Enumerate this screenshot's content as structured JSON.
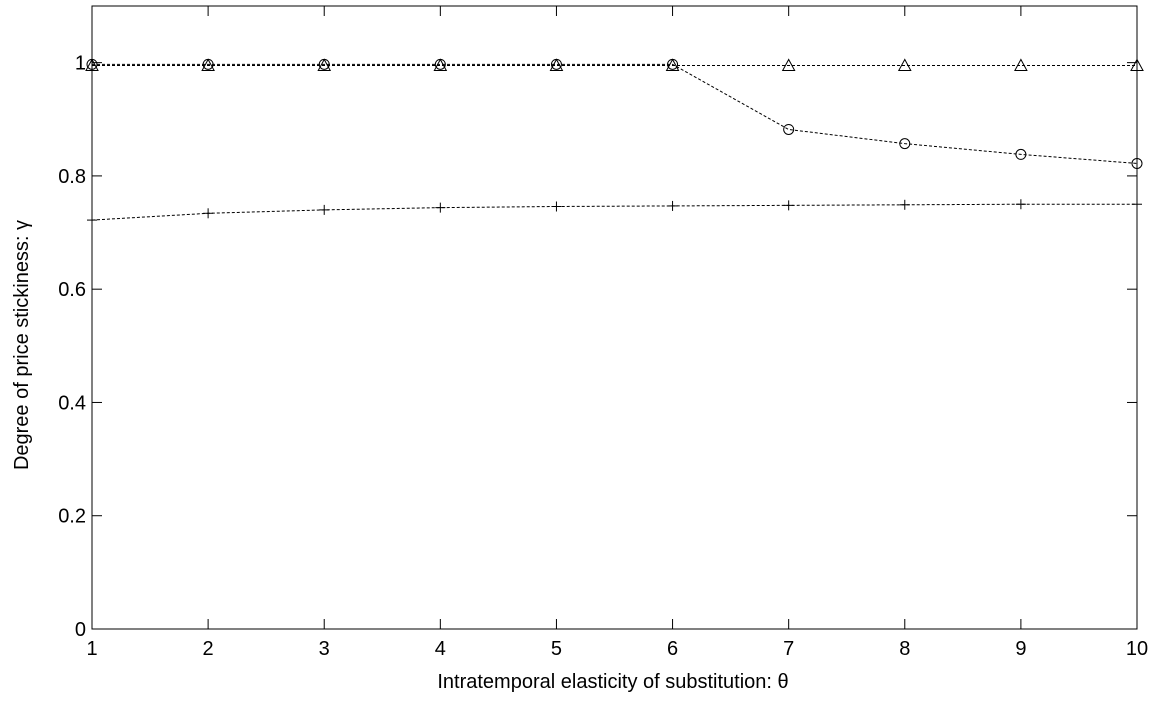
{
  "chart_data": {
    "type": "line",
    "title": "",
    "xlabel": "Intratemporal elasticity of substitution: θ",
    "ylabel": "Degree of price stickiness: γ",
    "xlim": [
      1,
      10
    ],
    "ylim": [
      0,
      1.1
    ],
    "x": [
      1,
      2,
      3,
      4,
      5,
      6,
      7,
      8,
      9,
      10
    ],
    "xticks": [
      "1",
      "2",
      "3",
      "4",
      "5",
      "6",
      "7",
      "8",
      "9",
      "10"
    ],
    "yticks": [
      {
        "value": 0,
        "label": "0"
      },
      {
        "value": 0.2,
        "label": "0.2"
      },
      {
        "value": 0.4,
        "label": "0.4"
      },
      {
        "value": 0.6,
        "label": "0.6"
      },
      {
        "value": 0.8,
        "label": "0.8"
      },
      {
        "value": 1,
        "label": "1"
      }
    ],
    "grid": false,
    "legend": "none",
    "series": [
      {
        "marker": "plus",
        "values": [
          0.722,
          0.734,
          0.74,
          0.744,
          0.746,
          0.747,
          0.748,
          0.749,
          0.75,
          0.75
        ]
      },
      {
        "marker": "circle",
        "values": [
          0.997,
          0.997,
          0.997,
          0.997,
          0.997,
          0.997,
          0.882,
          0.857,
          0.838,
          0.822
        ]
      },
      {
        "marker": "triangle",
        "values": [
          0.995,
          0.995,
          0.995,
          0.995,
          0.995,
          0.995,
          0.995,
          0.995,
          0.995,
          0.995
        ]
      }
    ],
    "colors": {
      "line": "#000000",
      "background": "#ffffff"
    }
  }
}
